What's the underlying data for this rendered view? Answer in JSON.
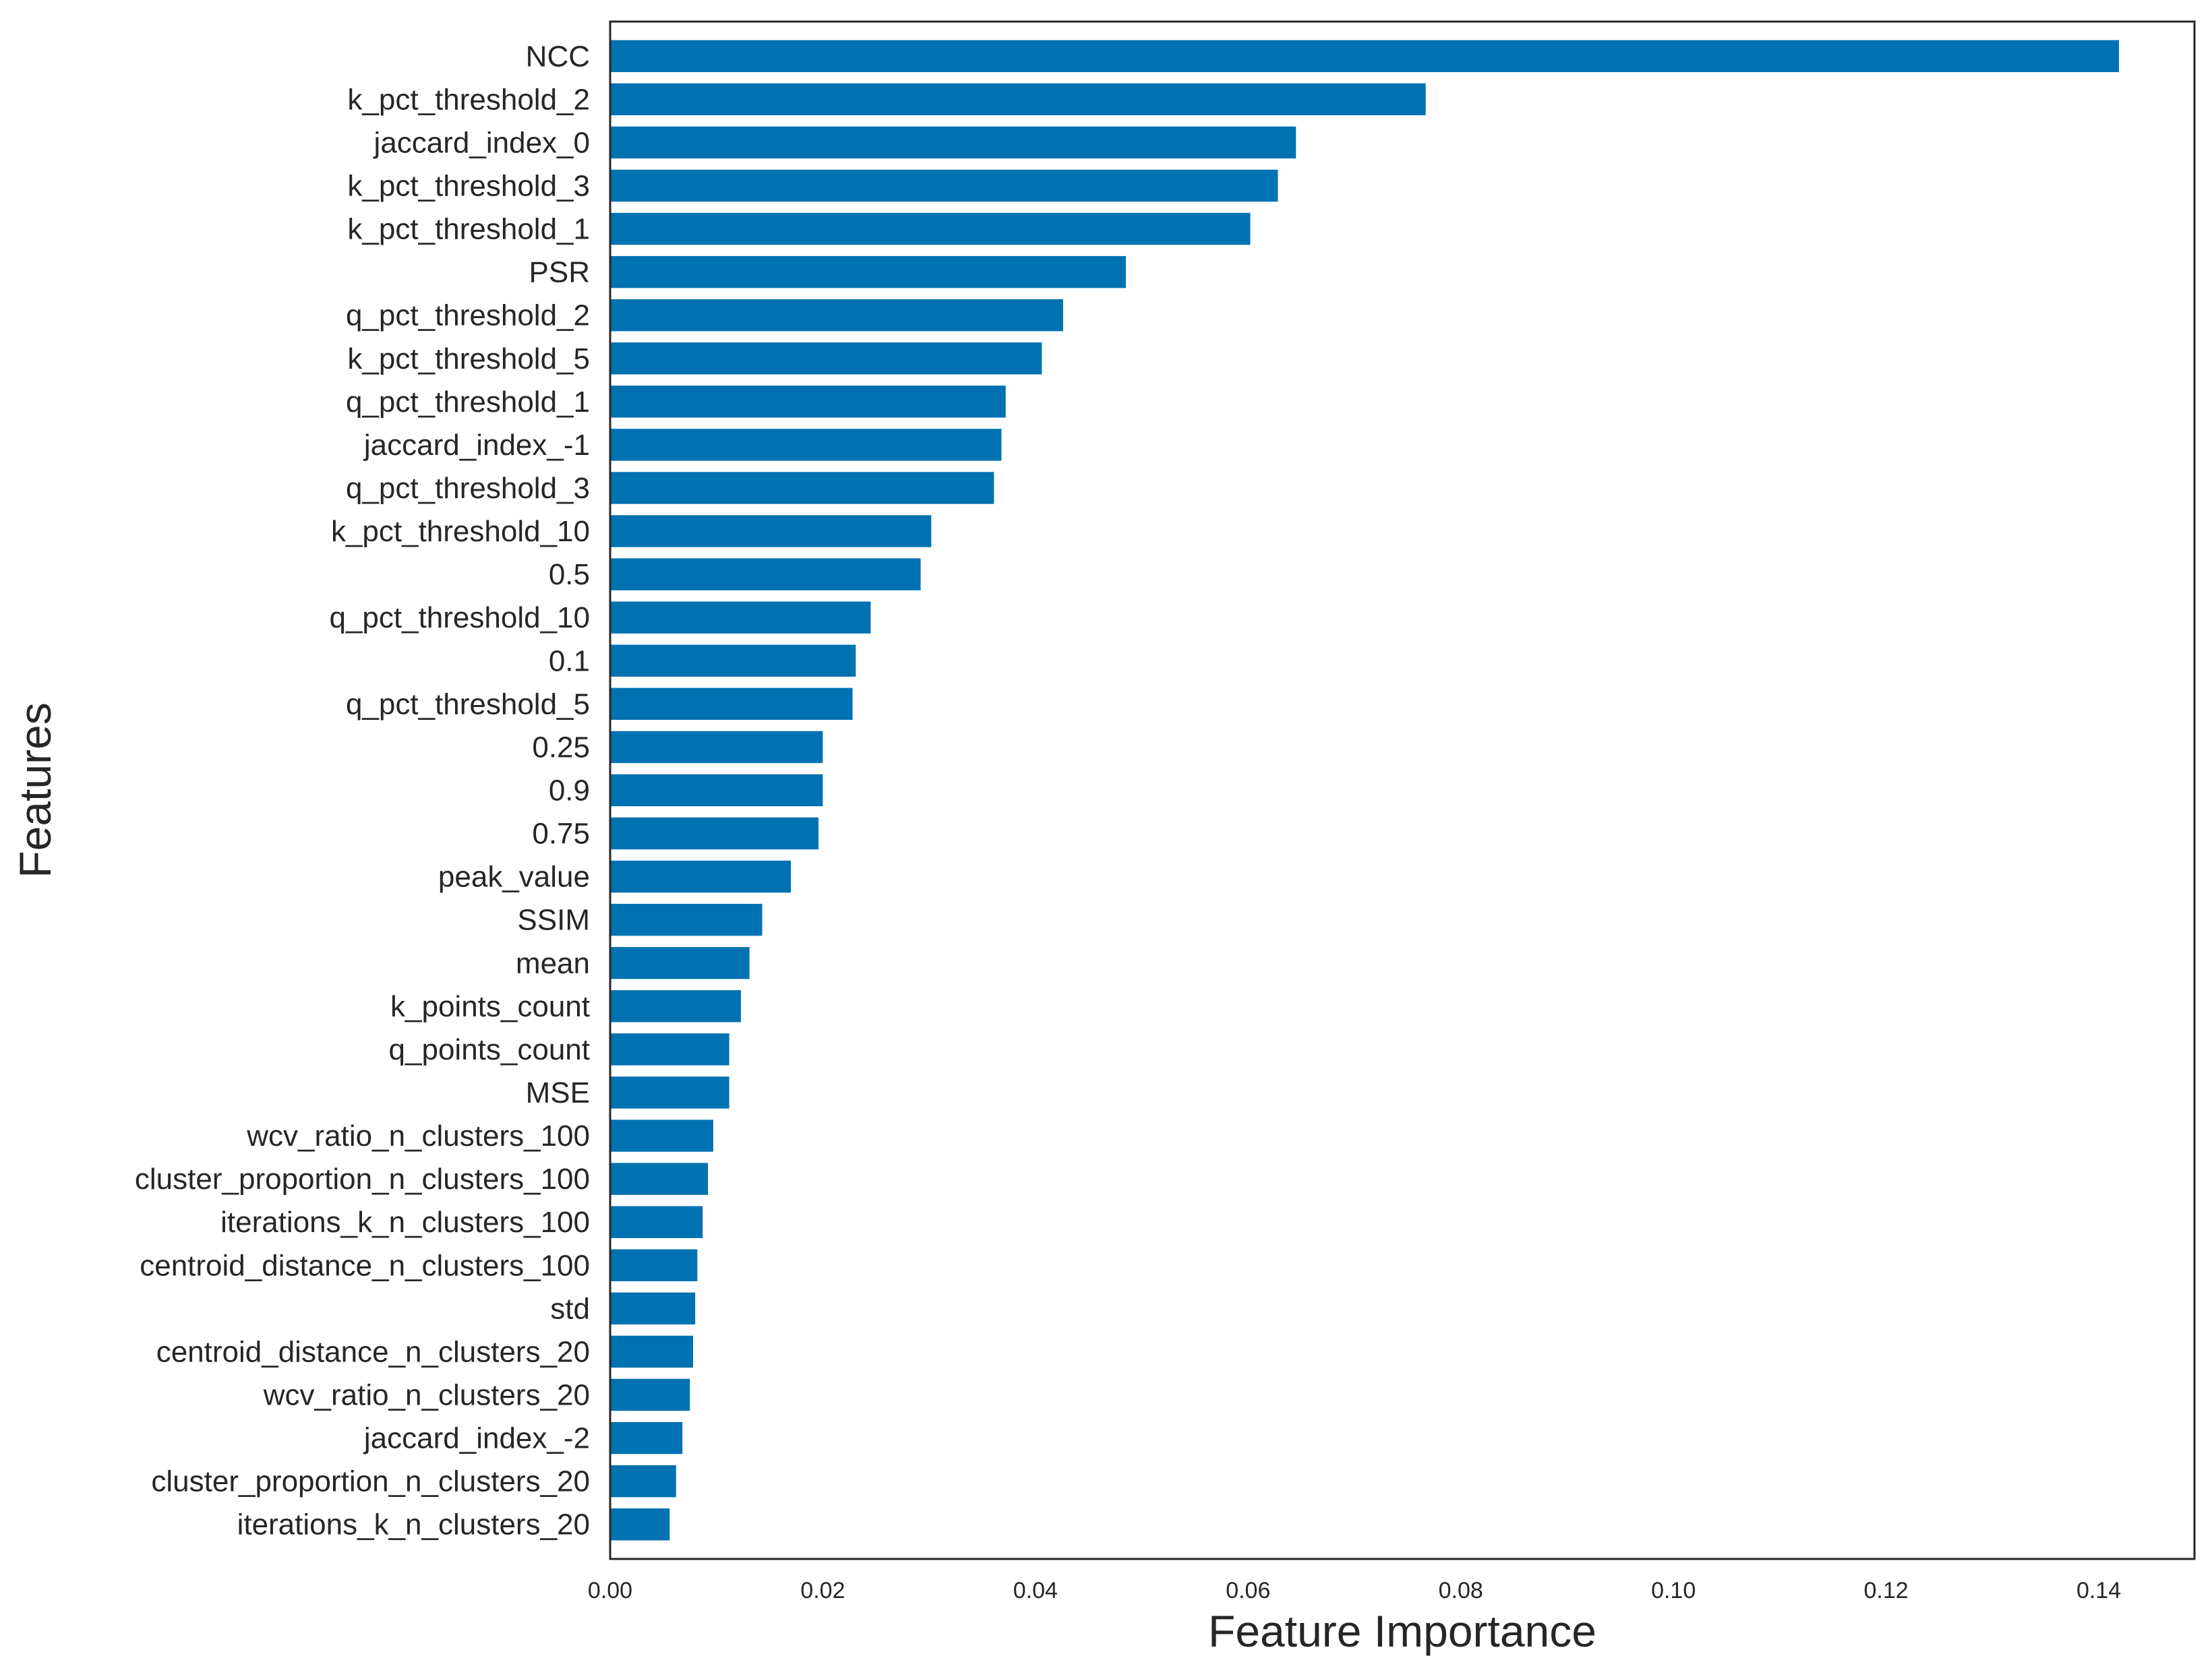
{
  "chart_data": {
    "type": "bar",
    "orientation": "horizontal",
    "title": "",
    "xlabel": "Feature Importance",
    "ylabel": "Features",
    "xlim": [
      0,
      0.149
    ],
    "xticks": [
      0.0,
      0.02,
      0.04,
      0.06,
      0.08,
      0.1,
      0.12,
      0.14
    ],
    "xtick_labels": [
      "0.00",
      "0.02",
      "0.04",
      "0.06",
      "0.08",
      "0.10",
      "0.12",
      "0.14"
    ],
    "grid": false,
    "bar_color": "#0072b2",
    "categories": [
      "NCC",
      "k_pct_threshold_2",
      "jaccard_index_0",
      "k_pct_threshold_3",
      "k_pct_threshold_1",
      "PSR",
      "q_pct_threshold_2",
      "k_pct_threshold_5",
      "q_pct_threshold_1",
      "jaccard_index_-1",
      "q_pct_threshold_3",
      "k_pct_threshold_10",
      "0.5",
      "q_pct_threshold_10",
      "0.1",
      "q_pct_threshold_5",
      "0.25",
      "0.9",
      "0.75",
      "peak_value",
      "SSIM",
      "mean",
      "k_points_count",
      "q_points_count",
      "MSE",
      "wcv_ratio_n_clusters_100",
      "cluster_proportion_n_clusters_100",
      "iterations_k_n_clusters_100",
      "centroid_distance_n_clusters_100",
      "std",
      "centroid_distance_n_clusters_20",
      "wcv_ratio_n_clusters_20",
      "jaccard_index_-2",
      "cluster_proportion_n_clusters_20",
      "iterations_k_n_clusters_20"
    ],
    "values": [
      0.1419,
      0.0767,
      0.0645,
      0.0628,
      0.0602,
      0.0485,
      0.0426,
      0.0406,
      0.0372,
      0.0368,
      0.0361,
      0.0302,
      0.0292,
      0.0245,
      0.0231,
      0.0228,
      0.02,
      0.02,
      0.0196,
      0.017,
      0.0143,
      0.0131,
      0.0123,
      0.0112,
      0.0112,
      0.0097,
      0.0092,
      0.0087,
      0.0082,
      0.008,
      0.0078,
      0.0075,
      0.0068,
      0.0062,
      0.0056
    ]
  }
}
